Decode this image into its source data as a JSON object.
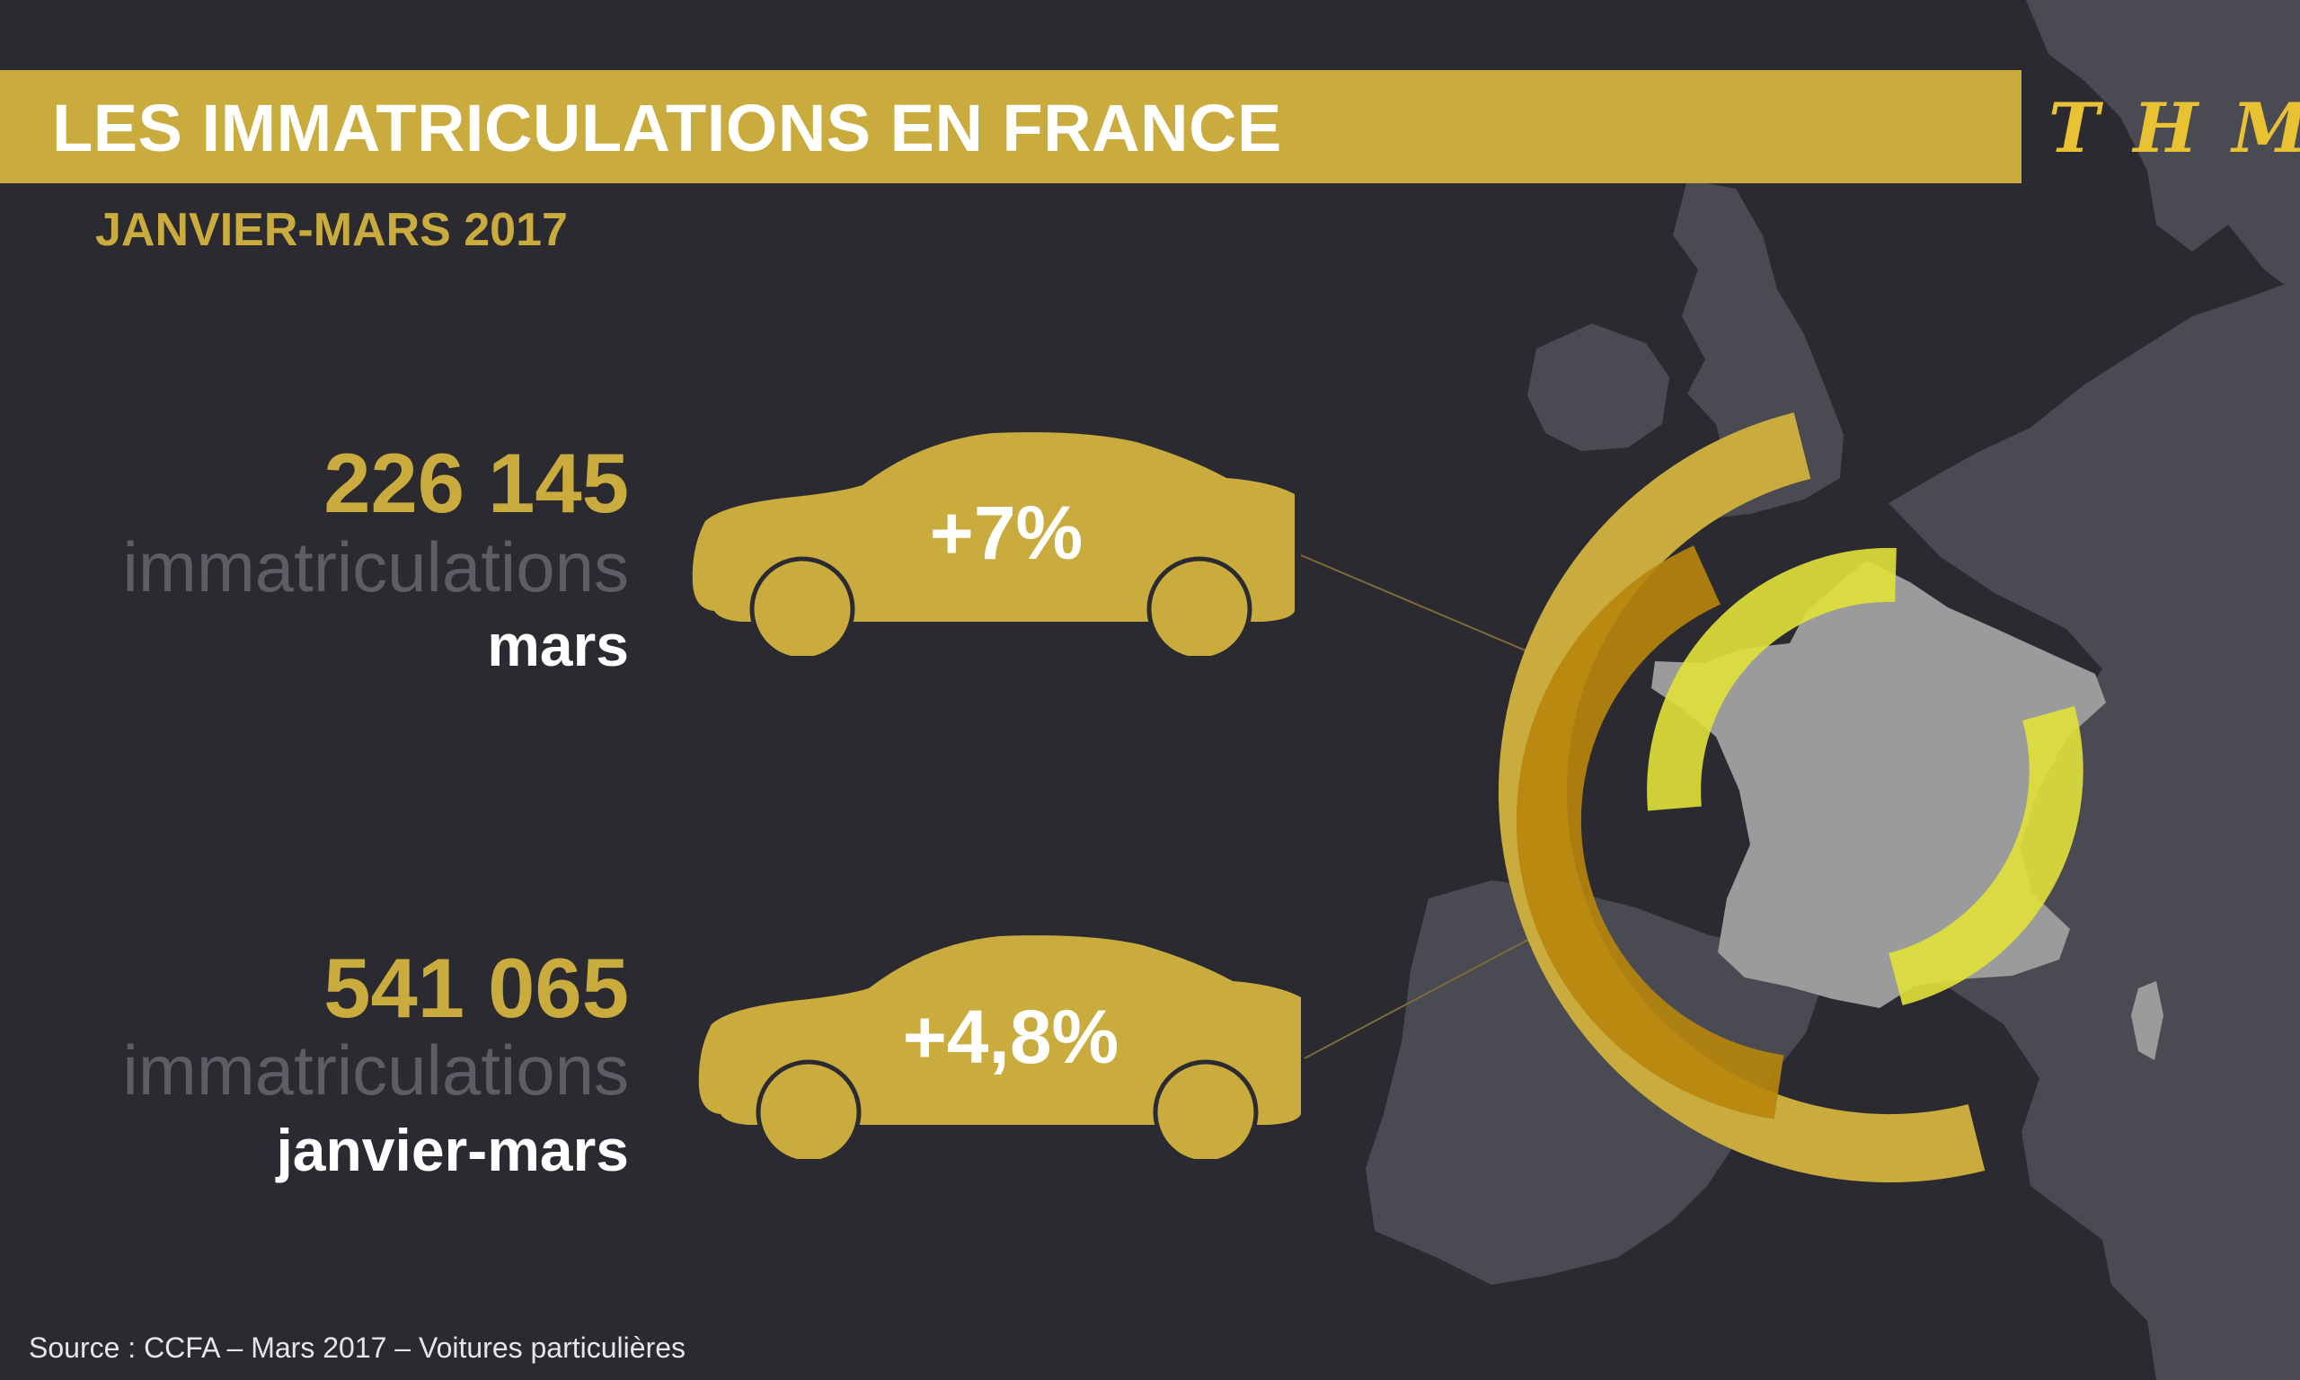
{
  "header": {
    "title": "LES IMMATRICULATIONS EN FRANCE",
    "logo": "THM",
    "subtitle": "JANVIER-MARS 2017"
  },
  "stats": [
    {
      "number": "226 145",
      "unit": "immatriculations",
      "period": "mars",
      "change": "+7%"
    },
    {
      "number": "541 065",
      "unit": "immatriculations",
      "period": "janvier-mars",
      "change": "+4,8%"
    }
  ],
  "footer": {
    "source": "Source : CCFA – Mars 2017 – Voitures particulières"
  },
  "colors": {
    "background": "#2a2a30",
    "accent_gold": "#c9ab3e",
    "accent_dark_gold": "#b8860b",
    "accent_yellow": "#e1e23a",
    "map_land": "#4a4a52",
    "france": "#9b9b9b",
    "muted_text": "#5e5d66"
  },
  "icons": [
    "car-icon",
    "europe-map",
    "france-map",
    "ring-chart"
  ]
}
